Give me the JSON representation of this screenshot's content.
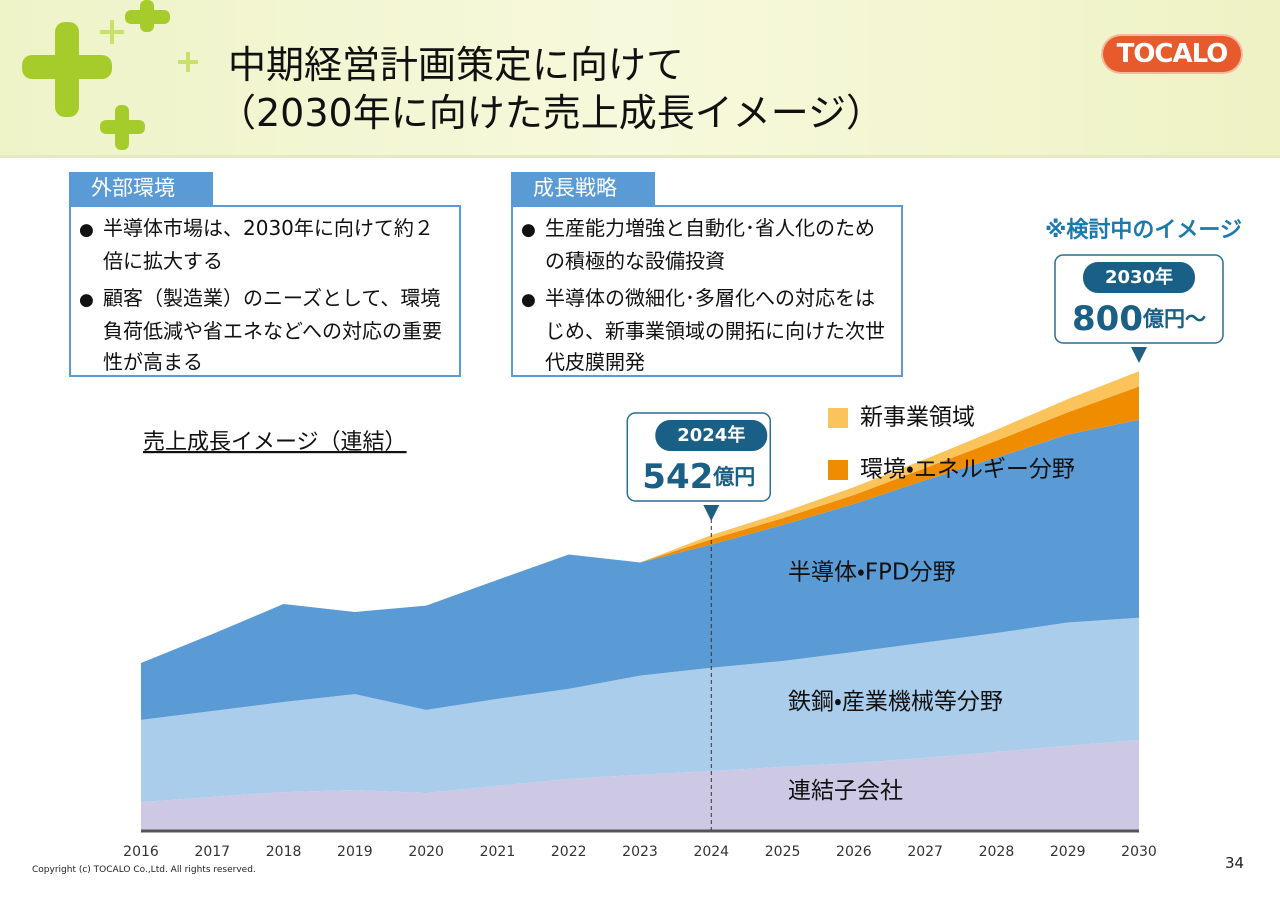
{
  "header": {
    "title_lines": [
      "中期経営計画策定に向けて",
      "（2030年に向けた売上成長イメージ）"
    ],
    "logo": "TOCALO"
  },
  "panels": [
    {
      "tab": "外部環境",
      "items": [
        "半導体市場は、2030年に向けて約２倍に拡大する",
        "顧客（製造業）のニーズとして、環境負荷低減や省エネなどへの対応の重要性が高まる"
      ]
    },
    {
      "tab": "成長戦略",
      "items": [
        "生産能力増強と自動化･省人化のための積極的な設備投資",
        "半導体の微細化･多層化への対応をはじめ、新事業領域の開拓に向けた次世代皮膜開発"
      ]
    }
  ],
  "chart_data": {
    "type": "stacked_area",
    "title": "売上成長イメージ（連結）",
    "note": "※検討中のイメージ",
    "x": [
      2016,
      2017,
      2018,
      2019,
      2020,
      2021,
      2022,
      2023,
      2024,
      2025,
      2026,
      2027,
      2028,
      2029,
      2030
    ],
    "xlim": [
      2016,
      2030
    ],
    "ylim": [
      0,
      900
    ],
    "series": [
      {
        "name": "連結子会社",
        "color": "#cdc9e4",
        "values": [
          53,
          63,
          72,
          76,
          70,
          84,
          97,
          105,
          112,
          120,
          127,
          137,
          148,
          160,
          171
        ]
      },
      {
        "name": "鉄鋼・産業機械等分野",
        "color": "#aacdec",
        "values": [
          156,
          163,
          171,
          182,
          158,
          165,
          171,
          188,
          196,
          201,
          211,
          219,
          226,
          234,
          232
        ]
      },
      {
        "name": "半導体・FPD分野",
        "color": "#5b9bd5",
        "values": [
          108,
          146,
          186,
          156,
          198,
          226,
          255,
          215,
          234,
          258,
          281,
          308,
          333,
          357,
          376
        ]
      },
      {
        "name": "環境・エネルギー分野",
        "color": "#f08c00",
        "in_legend": true,
        "values": [
          null,
          null,
          null,
          null,
          null,
          null,
          null,
          0,
          10,
          13,
          17,
          23,
          32,
          42,
          63
        ]
      },
      {
        "name": "新事業領域",
        "color": "#fbc35c",
        "in_legend": true,
        "values": [
          null,
          null,
          null,
          null,
          null,
          null,
          null,
          0,
          8,
          11,
          15,
          17,
          21,
          25,
          29
        ]
      }
    ],
    "annotations": [
      {
        "x": 2024,
        "label": "2024年",
        "value": 542,
        "unit": "億円"
      },
      {
        "x": 2030,
        "label": "2030年",
        "value": 800,
        "unit": "億円～"
      }
    ]
  },
  "footer": {
    "copyright": "Copyright (c) TOCALO Co.,Ltd. All rights reserved.",
    "page": "34"
  }
}
